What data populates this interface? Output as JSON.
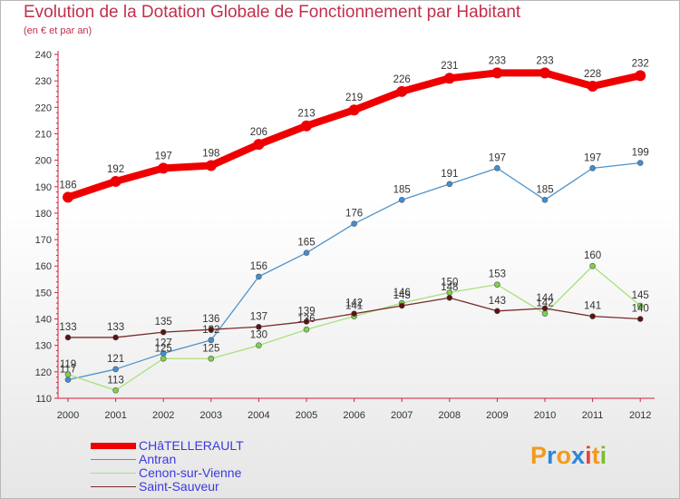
{
  "title": "Evolution de la Dotation Globale de Fonctionnement par Habitant",
  "subtitle": "(en € et par an)",
  "logo": {
    "text": "Proxiti",
    "letters": [
      "P",
      "r",
      "o",
      "x",
      "i",
      "t",
      "i"
    ],
    "colors": [
      "#f39a1d",
      "#2b87d6",
      "#f39a1d",
      "#2b87d6",
      "#e8433a",
      "#f39a1d",
      "#7bbf2c"
    ]
  },
  "chart_data": {
    "type": "line",
    "title": "Evolution de la Dotation Globale de Fonctionnement par Habitant",
    "subtitle": "(en € et par an)",
    "xlabel": "",
    "ylabel": "",
    "ylim": [
      110,
      240
    ],
    "yticks": [
      110,
      120,
      130,
      140,
      150,
      160,
      170,
      180,
      190,
      200,
      210,
      220,
      230,
      240
    ],
    "grid": false,
    "legend_position": "bottom-left",
    "x": [
      "2000",
      "2001",
      "2002",
      "2003",
      "2004",
      "2005",
      "2006",
      "2007",
      "2008",
      "2009",
      "2010",
      "2011",
      "2012"
    ],
    "series": [
      {
        "name": "CHâTELLERAULT",
        "color": "#ee0000",
        "thick": true,
        "values": [
          186,
          192,
          197,
          198,
          206,
          213,
          219,
          226,
          231,
          233,
          233,
          228,
          232
        ]
      },
      {
        "name": "Antran",
        "color": "#4f93c9",
        "dot": "#3f8fd2",
        "values": [
          117,
          121,
          127,
          132,
          156,
          165,
          176,
          185,
          191,
          197,
          185,
          197,
          199
        ]
      },
      {
        "name": "Cenon-sur-Vienne",
        "color": "#a8e07a",
        "dot": "#7ed24a",
        "values": [
          119,
          113,
          125,
          125,
          130,
          136,
          141,
          146,
          150,
          153,
          142,
          160,
          145
        ]
      },
      {
        "name": "Saint-Sauveur",
        "color": "#7a2a2a",
        "dot": "#5a1212",
        "values": [
          133,
          133,
          135,
          136,
          137,
          139,
          142,
          145,
          148,
          143,
          144,
          141,
          140
        ]
      }
    ]
  }
}
